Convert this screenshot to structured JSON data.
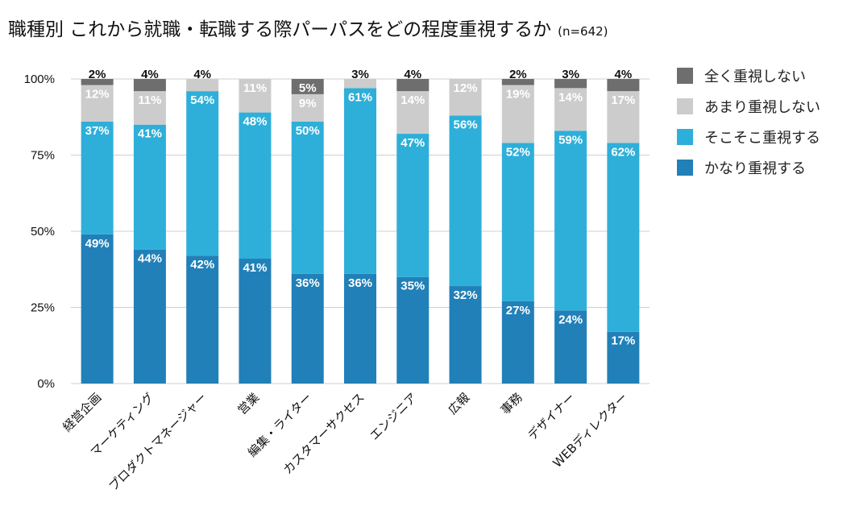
{
  "chart_data": {
    "type": "bar",
    "stacked": true,
    "title": "職種別 これから就職・転職する際パーパスをどの程度重視するか",
    "subtitle": "(n=642)",
    "categories": [
      "経営企画",
      "マーケティング",
      "プロダクトマネージャー",
      "営業",
      "編集・ライター",
      "カスタマーサクセス",
      "エンジニア",
      "広報",
      "事務",
      "デザイナー",
      "WEBディレクター"
    ],
    "series": [
      {
        "name": "かなり重視する",
        "color": "#2180b8",
        "values": [
          49,
          44,
          42,
          41,
          36,
          36,
          35,
          32,
          27,
          24,
          17
        ]
      },
      {
        "name": "そこそこ重視する",
        "color": "#2eafd9",
        "values": [
          37,
          41,
          54,
          48,
          50,
          61,
          47,
          56,
          52,
          59,
          62
        ]
      },
      {
        "name": "あまり重視しない",
        "color": "#cccccc",
        "values": [
          12,
          11,
          4,
          11,
          9,
          3,
          14,
          12,
          19,
          14,
          17
        ]
      },
      {
        "name": "全く重視しない",
        "color": "#6e6e6e",
        "values": [
          2,
          4,
          0,
          0,
          5,
          0,
          4,
          0,
          2,
          3,
          4
        ]
      }
    ],
    "data_labels": [
      [
        "49%",
        "37%",
        "12%",
        "2%"
      ],
      [
        "44%",
        "41%",
        "11%",
        "4%"
      ],
      [
        "42%",
        "54%",
        "4%",
        ""
      ],
      [
        "41%",
        "48%",
        "11%",
        ""
      ],
      [
        "36%",
        "50%",
        "9%",
        "5%"
      ],
      [
        "36%",
        "61%",
        "3%",
        ""
      ],
      [
        "35%",
        "47%",
        "14%",
        "4%"
      ],
      [
        "32%",
        "56%",
        "12%",
        ""
      ],
      [
        "27%",
        "52%",
        "19%",
        "2%"
      ],
      [
        "24%",
        "59%",
        "14%",
        "3%"
      ],
      [
        "17%",
        "62%",
        "17%",
        "4%"
      ]
    ],
    "label_colors": [
      "#ffffff",
      "#ffffff",
      "#ffffff",
      "#ffffff"
    ],
    "outside_label_color": "#111111",
    "yticks": [
      "0%",
      "25%",
      "50%",
      "75%",
      "100%"
    ],
    "ylim": [
      0,
      100
    ],
    "grid": true,
    "legend": {
      "position": "right",
      "order": [
        "全く重視しない",
        "あまり重視しない",
        "そこそこ重視する",
        "かなり重視する"
      ]
    }
  }
}
